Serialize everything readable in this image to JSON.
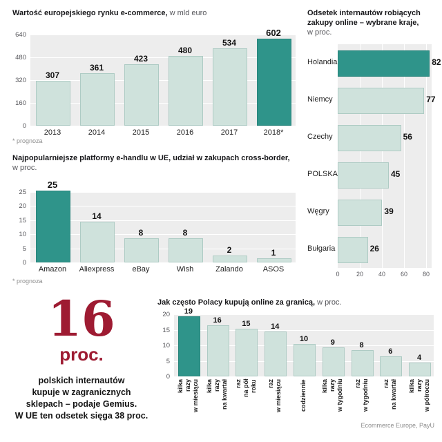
{
  "chart_data": [
    {
      "id": "european-ecommerce-market-value",
      "type": "bar",
      "title": "Wartość europejskiego rynku e-commerce,",
      "title_suffix": " w mld euro",
      "categories": [
        "2013",
        "2014",
        "2015",
        "2016",
        "2017",
        "2018*"
      ],
      "values": [
        307,
        361,
        423,
        480,
        534,
        602
      ],
      "highlight_index": 5,
      "ylim": [
        0,
        640
      ],
      "yticks": [
        0,
        160,
        320,
        480,
        640
      ],
      "footnote": "* prognoza"
    },
    {
      "id": "online-buyers-by-country",
      "type": "hbar",
      "title_line1": "Odsetek internautów robiących",
      "title_line2": "zakupy online – wybrane kraje,",
      "title_suffix": "w proc.",
      "categories": [
        "Holandia",
        "Niemcy",
        "Czechy",
        "POLSKA",
        "Węgry",
        "Bułgaria"
      ],
      "values": [
        82,
        77,
        56,
        45,
        39,
        26
      ],
      "highlight_index": 0,
      "xlim": [
        0,
        80
      ],
      "xticks": [
        0,
        20,
        40,
        60,
        80
      ]
    },
    {
      "id": "cross-border-platforms",
      "type": "bar",
      "title": "Najpopularniejsze platformy e-handlu w UE, udział w zakupach cross-border,",
      "title_suffix": "w proc.",
      "categories": [
        "Amazon",
        "Aliexpress",
        "eBay",
        "Wish",
        "Zalando",
        "ASOS"
      ],
      "values": [
        25,
        14,
        8,
        8,
        2,
        1
      ],
      "highlight_index": 0,
      "ylim": [
        0,
        25
      ],
      "yticks": [
        0,
        5,
        10,
        15,
        20,
        25
      ],
      "footnote": "* prognoza"
    },
    {
      "id": "cross-border-shopping-frequency",
      "type": "bar",
      "title": "Jak często Polacy kupują online za granicą,",
      "title_suffix": " w proc.",
      "categories": [
        "kilka razy w miesiącu",
        "kilka razy na kwartał",
        "raz na pół roku",
        "raz w miesiącu",
        "codziennie",
        "kilka razy w tygodniu",
        "raz w tygodniu",
        "raz na kwartał",
        "kilka razy w półroczu"
      ],
      "categories_display": [
        "kilka\nrazy\nw miesiącu",
        "kilka\nrazy\nna kwartał",
        "raz\nna pół\nroku",
        "raz\nw miesiącu",
        "codziennie",
        "kilka\nrazy\nw tygodniu",
        "raz\nw tygodniu",
        "raz\nna kwartał",
        "kilka\nrazy\nw półroczu"
      ],
      "values": [
        19,
        16,
        15,
        14,
        10,
        9,
        8,
        6,
        4
      ],
      "highlight_index": 0,
      "ylim": [
        0,
        20
      ],
      "yticks": [
        0,
        5,
        10,
        15,
        20
      ]
    }
  ],
  "stat": {
    "number": "16",
    "unit": "proc.",
    "caption_lines": [
      "polskich internautów",
      "kupuje w zagranicznych",
      "sklepach – podaje Gemius.",
      "W UE ten odsetek sięga 38 proc."
    ]
  },
  "source": "Ecommerce Europe, PayU",
  "colors": {
    "highlight": "#2f948a",
    "highlight_border": "#28847b",
    "bar_fill": "#cfe2dc",
    "bar_border": "#aecbc4",
    "panel": "#ededed",
    "accent_red": "#9e1b32"
  }
}
